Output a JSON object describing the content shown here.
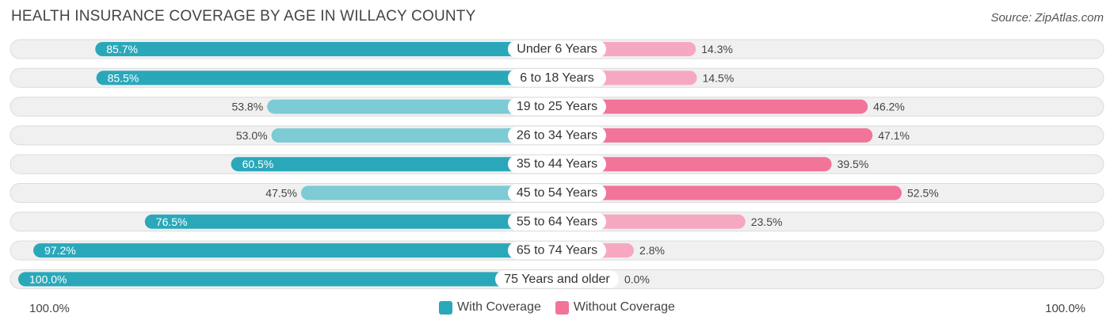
{
  "title": "HEALTH INSURANCE COVERAGE BY AGE IN WILLACY COUNTY",
  "source": "Source: ZipAtlas.com",
  "colors": {
    "with_dark": "#2aa8ba",
    "with_light": "#7dcbd4",
    "without_dark": "#f27499",
    "without_light": "#f7a8c1",
    "row_bg": "#f0f0f0",
    "row_border": "#dcdcdc"
  },
  "legend": {
    "with_label": "With Coverage",
    "without_label": "Without Coverage"
  },
  "axis": {
    "left_label": "100.0%",
    "right_label": "100.0%"
  },
  "chart_data": {
    "type": "bar",
    "orientation": "diverging-horizontal",
    "title": "HEALTH INSURANCE COVERAGE BY AGE IN WILLACY COUNTY",
    "categories": [
      "Under 6 Years",
      "6 to 18 Years",
      "19 to 25 Years",
      "26 to 34 Years",
      "35 to 44 Years",
      "45 to 54 Years",
      "55 to 64 Years",
      "65 to 74 Years",
      "75 Years and older"
    ],
    "series": [
      {
        "name": "With Coverage",
        "values": [
          85.7,
          85.5,
          53.8,
          53.0,
          60.5,
          47.5,
          76.5,
          97.2,
          100.0
        ],
        "labels": [
          "85.7%",
          "85.5%",
          "53.8%",
          "53.0%",
          "60.5%",
          "47.5%",
          "76.5%",
          "97.2%",
          "100.0%"
        ]
      },
      {
        "name": "Without Coverage",
        "values": [
          14.3,
          14.5,
          46.2,
          47.1,
          39.5,
          52.5,
          23.5,
          2.8,
          0.0
        ],
        "labels": [
          "14.3%",
          "14.5%",
          "46.2%",
          "47.1%",
          "39.5%",
          "52.5%",
          "23.5%",
          "2.8%",
          "0.0%"
        ]
      }
    ],
    "xlim": [
      -100,
      100
    ],
    "legend_position": "bottom-center"
  }
}
